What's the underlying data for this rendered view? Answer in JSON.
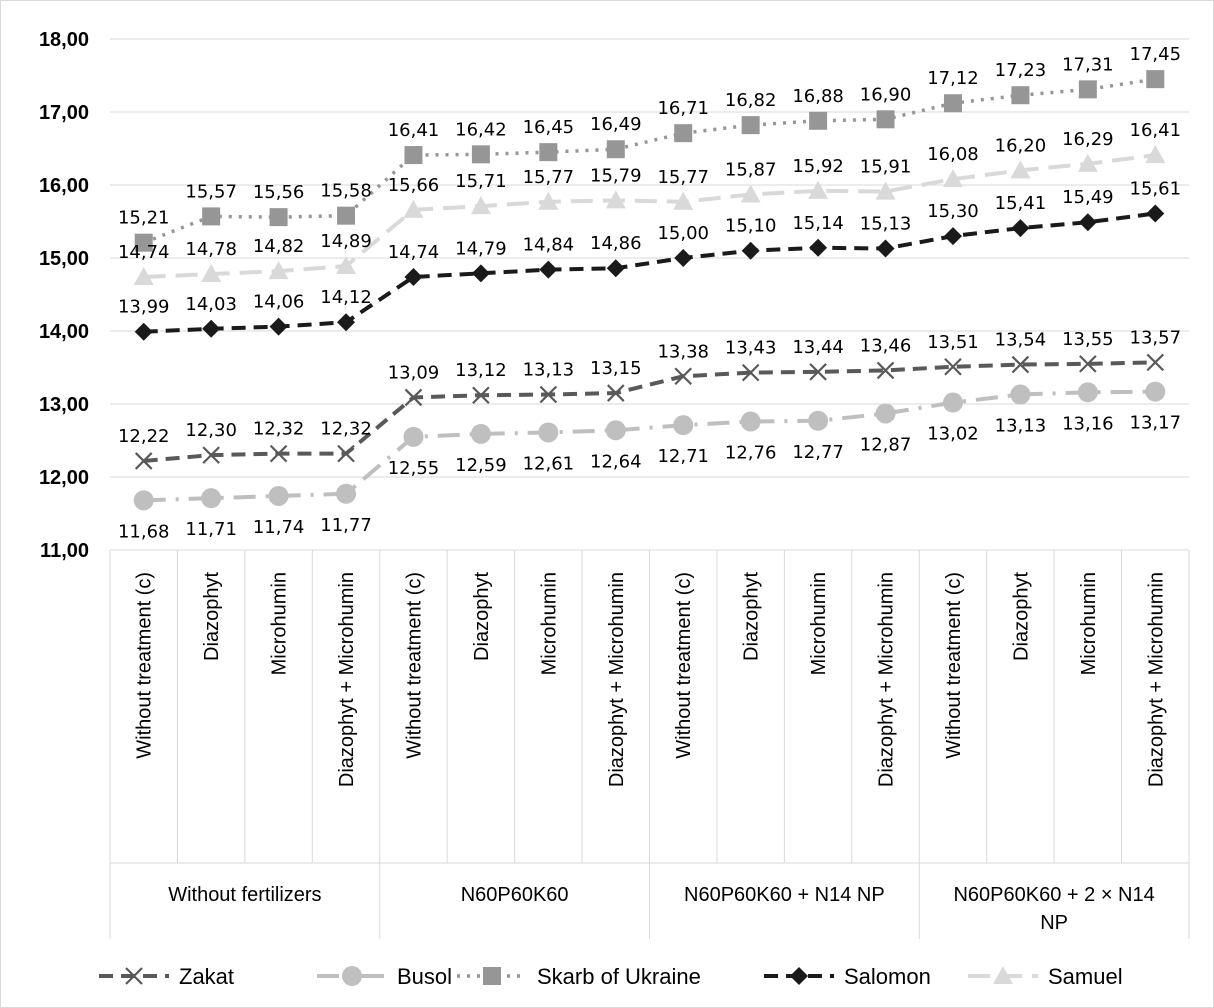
{
  "chart_data": {
    "type": "line",
    "title": "",
    "xlabel": "",
    "ylabel": "",
    "ylim": [
      11,
      18
    ],
    "yticks": [
      "11,00",
      "12,00",
      "13,00",
      "14,00",
      "15,00",
      "16,00",
      "17,00",
      "18,00"
    ],
    "grid": "horizontal",
    "legend_position": "bottom",
    "groups": [
      {
        "label": "Without fertilizers",
        "label_lines": [
          "Without fertilizers"
        ]
      },
      {
        "label": "N60P60K60",
        "label_lines": [
          "N60P60K60"
        ]
      },
      {
        "label": "N60P60K60 + N14 NP",
        "label_lines": [
          "N60P60K60 + N14 NP"
        ]
      },
      {
        "label": "N60P60K60 + 2 × N14 NP",
        "label_lines": [
          "N60P60K60 + 2 × N14",
          "NP"
        ]
      }
    ],
    "categories": [
      "Without treatment (c)",
      "Diazophyt",
      "Microhumin",
      "Diazophyt + Microhumin",
      "Without treatment (c)",
      "Diazophyt",
      "Microhumin",
      "Diazophyt + Microhumin",
      "Without treatment (c)",
      "Diazophyt",
      "Microhumin",
      "Diazophyt + Microhumin",
      "Without treatment (c)",
      "Diazophyt",
      "Microhumin",
      "Diazophyt + Microhumin"
    ],
    "series": [
      {
        "name": "Zakat",
        "color": "#595959",
        "marker": "x",
        "dash": "dashed",
        "values": [
          12.22,
          12.3,
          12.32,
          12.32,
          13.09,
          13.12,
          13.13,
          13.15,
          13.38,
          13.43,
          13.44,
          13.46,
          13.51,
          13.54,
          13.55,
          13.57
        ],
        "labels": [
          "12,22",
          "12,30",
          "12,32",
          "12,32",
          "13,09",
          "13,12",
          "13,13",
          "13,15",
          "13,38",
          "13,43",
          "13,44",
          "13,46",
          "13,51",
          "13,54",
          "13,55",
          "13,57"
        ],
        "label_position": "above"
      },
      {
        "name": "Busol",
        "color": "#bfbfbf",
        "marker": "circle",
        "dash": "longdashdot",
        "values": [
          11.68,
          11.71,
          11.74,
          11.77,
          12.55,
          12.59,
          12.61,
          12.64,
          12.71,
          12.76,
          12.77,
          12.87,
          13.02,
          13.13,
          13.16,
          13.17
        ],
        "labels": [
          "11,68",
          "11,71",
          "11,74",
          "11,77",
          "12,55",
          "12,59",
          "12,61",
          "12,64",
          "12,71",
          "12,76",
          "12,77",
          "12,87",
          "13,02",
          "13,13",
          "13,16",
          "13,17"
        ],
        "label_position": "below"
      },
      {
        "name": "Skarb of Ukraine",
        "color": "#969696",
        "marker": "square",
        "dash": "dotted",
        "values": [
          15.21,
          15.57,
          15.56,
          15.58,
          16.41,
          16.42,
          16.45,
          16.49,
          16.71,
          16.82,
          16.88,
          16.9,
          17.12,
          17.23,
          17.31,
          17.45
        ],
        "labels": [
          "15,21",
          "15,57",
          "15,56",
          "15,58",
          "16,41",
          "16,42",
          "16,45",
          "16,49",
          "16,71",
          "16,82",
          "16,88",
          "16,90",
          "17,12",
          "17,23",
          "17,31",
          "17,45"
        ],
        "label_position": "above"
      },
      {
        "name": "Salomon",
        "color": "#1a1a1a",
        "marker": "diamond",
        "dash": "dashed",
        "values": [
          13.99,
          14.03,
          14.06,
          14.12,
          14.74,
          14.79,
          14.84,
          14.86,
          15.0,
          15.1,
          15.14,
          15.13,
          15.3,
          15.41,
          15.49,
          15.61
        ],
        "labels": [
          "13,99",
          "14,03",
          "14,06",
          "14,12",
          "14,74",
          "14,79",
          "14,84",
          "14,86",
          "15,00",
          "15,10",
          "15,14",
          "15,13",
          "15,30",
          "15,41",
          "15,49",
          "15,61"
        ],
        "label_position": "above"
      },
      {
        "name": "Samuel",
        "color": "#d9d9d9",
        "marker": "triangle",
        "dash": "longdash",
        "values": [
          14.74,
          14.78,
          14.82,
          14.89,
          15.66,
          15.71,
          15.77,
          15.79,
          15.77,
          15.87,
          15.92,
          15.91,
          16.08,
          16.2,
          16.29,
          16.41
        ],
        "labels": [
          "14,74",
          "14,78",
          "14,82",
          "14,89",
          "15,66",
          "15,71",
          "15,77",
          "15,79",
          "15,77",
          "15,87",
          "15,92",
          "15,91",
          "16,08",
          "16,20",
          "16,29",
          "16,41"
        ],
        "label_position": "above"
      }
    ]
  }
}
